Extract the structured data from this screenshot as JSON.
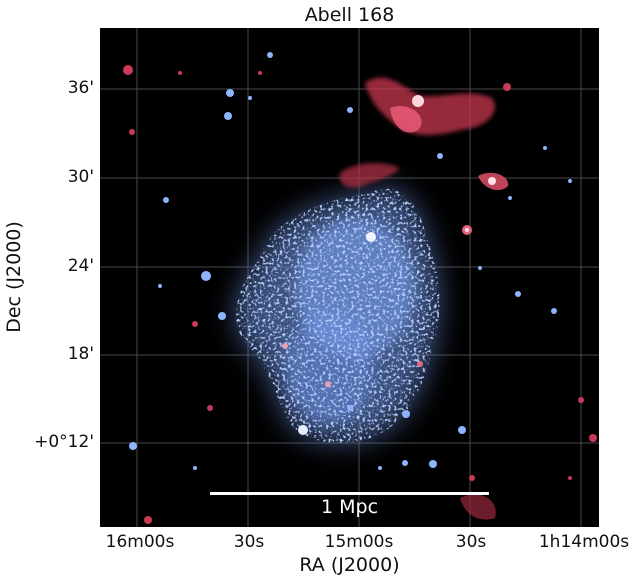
{
  "figure": {
    "title": "Abell 168",
    "xlabel": "RA (J2000)",
    "ylabel": "Dec (J2000)",
    "xticks": [
      "16m00s",
      "30s",
      "15m00s",
      "30s",
      "1h14m00s"
    ],
    "yticks": [
      "36'",
      "30'",
      "24'",
      "18'",
      "+0°12'"
    ],
    "scalebar_label": "1 Mpc",
    "colors": {
      "background": "#000000",
      "xray_emission": "#6f95e8",
      "radio_emission": "#d0405a",
      "grid": "#5a5a5a"
    }
  }
}
